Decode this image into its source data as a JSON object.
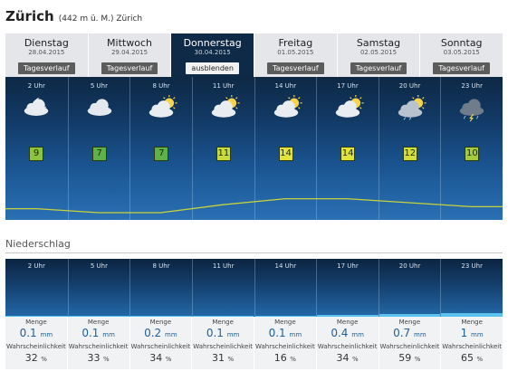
{
  "location": {
    "city": "Zürich",
    "detail": "(442 m ü. M.) Zürich"
  },
  "days": [
    {
      "name": "Dienstag",
      "date": "28.04.2015",
      "button": "Tagesverlauf",
      "active": false
    },
    {
      "name": "Mittwoch",
      "date": "29.04.2015",
      "button": "Tagesverlauf",
      "active": false
    },
    {
      "name": "Donnerstag",
      "date": "30.04.2015",
      "button": "ausblenden",
      "active": true
    },
    {
      "name": "Freitag",
      "date": "01.05.2015",
      "button": "Tagesverlauf",
      "active": false
    },
    {
      "name": "Samstag",
      "date": "02.05.2015",
      "button": "Tagesverlauf",
      "active": false
    },
    {
      "name": "Sonntag",
      "date": "03.05.2015",
      "button": "Tagesverlauf",
      "active": false
    }
  ],
  "hours": [
    {
      "time": "2 Uhr",
      "temp": "9",
      "icon": "moon-cloud-icon",
      "temp_color": "#8cc43c"
    },
    {
      "time": "5 Uhr",
      "temp": "7",
      "icon": "cloud-icon",
      "temp_color": "#5fb24a"
    },
    {
      "time": "8 Uhr",
      "temp": "7",
      "icon": "sun-cloud-icon",
      "temp_color": "#5fb24a"
    },
    {
      "time": "11 Uhr",
      "temp": "11",
      "icon": "sun-cloud-icon",
      "temp_color": "#c9dc3c"
    },
    {
      "time": "14 Uhr",
      "temp": "14",
      "icon": "sun-cloud-icon",
      "temp_color": "#e2e23a"
    },
    {
      "time": "17 Uhr",
      "temp": "14",
      "icon": "sun-cloud-icon",
      "temp_color": "#e2e23a"
    },
    {
      "time": "20 Uhr",
      "temp": "12",
      "icon": "rain-sun-cloud-icon",
      "temp_color": "#d2de3e"
    },
    {
      "time": "23 Uhr",
      "temp": "10",
      "icon": "storm-cloud-icon",
      "temp_color": "#a6cc3c"
    }
  ],
  "precip": {
    "title": "Niederschlag",
    "menge_label": "Menge",
    "prob_label": "Wahrscheinlichkeit",
    "unit": "mm",
    "prob_unit": "%",
    "items": [
      {
        "time": "2 Uhr",
        "amount": "0.1",
        "prob": "32"
      },
      {
        "time": "5 Uhr",
        "amount": "0.1",
        "prob": "33"
      },
      {
        "time": "8 Uhr",
        "amount": "0.2",
        "prob": "34"
      },
      {
        "time": "11 Uhr",
        "amount": "0.1",
        "prob": "31"
      },
      {
        "time": "14 Uhr",
        "amount": "0.1",
        "prob": "16"
      },
      {
        "time": "17 Uhr",
        "amount": "0.4",
        "prob": "34"
      },
      {
        "time": "20 Uhr",
        "amount": "0.7",
        "prob": "59"
      },
      {
        "time": "23 Uhr",
        "amount": "1",
        "prob": "65"
      }
    ]
  },
  "colors": {
    "line": "#c8d23c",
    "precip_bar": "#5bc4ee",
    "accent": "#1f5f9a"
  }
}
